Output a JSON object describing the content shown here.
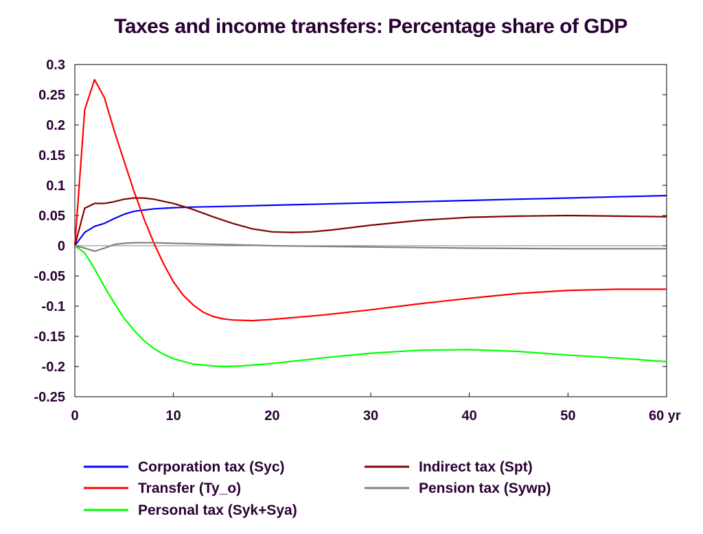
{
  "chart_data": {
    "type": "line",
    "title": "Taxes and income transfers: Percentage share of GDP",
    "xlim": [
      0,
      60
    ],
    "ylim": [
      -0.25,
      0.3
    ],
    "x_ticks": [
      "0",
      "10",
      "20",
      "30",
      "40",
      "50",
      "60 yr"
    ],
    "x_tick_values": [
      0,
      10,
      20,
      30,
      40,
      50,
      60
    ],
    "y_ticks": [
      "0.3",
      "0.25",
      "0.2",
      "0.15",
      "0.1",
      "0.05",
      "0",
      "-0.05",
      "-0.1",
      "-0.15",
      "-0.2",
      "-0.25"
    ],
    "y_tick_values": [
      0.3,
      0.25,
      0.2,
      0.15,
      0.1,
      0.05,
      0,
      -0.05,
      -0.1,
      -0.15,
      -0.2,
      -0.25
    ],
    "grid": false,
    "legend_position": "bottom",
    "series": [
      {
        "name": "Corporation tax (Syc)",
        "color": "#0000ff",
        "x": [
          0,
          1,
          2,
          3,
          4,
          5,
          6,
          8,
          10,
          12,
          15,
          20,
          25,
          30,
          35,
          40,
          45,
          50,
          55,
          60
        ],
        "y": [
          0,
          0.022,
          0.032,
          0.037,
          0.045,
          0.052,
          0.057,
          0.061,
          0.063,
          0.064,
          0.065,
          0.067,
          0.069,
          0.071,
          0.073,
          0.075,
          0.077,
          0.079,
          0.081,
          0.083
        ]
      },
      {
        "name": "Transfer (Ty_o)",
        "color": "#ff0000",
        "x": [
          0,
          1,
          2,
          3,
          4,
          5,
          6,
          7,
          8,
          9,
          10,
          11,
          12,
          13,
          14,
          15,
          16,
          18,
          20,
          25,
          30,
          35,
          40,
          45,
          50,
          55,
          60
        ],
        "y": [
          0,
          0.225,
          0.275,
          0.245,
          0.19,
          0.14,
          0.09,
          0.045,
          0.005,
          -0.03,
          -0.06,
          -0.082,
          -0.098,
          -0.11,
          -0.117,
          -0.121,
          -0.123,
          -0.124,
          -0.122,
          -0.115,
          -0.106,
          -0.096,
          -0.087,
          -0.079,
          -0.074,
          -0.072,
          -0.072
        ]
      },
      {
        "name": "Personal tax (Syk+Sya)",
        "color": "#00ff00",
        "x": [
          0,
          1,
          2,
          3,
          4,
          5,
          6,
          7,
          8,
          9,
          10,
          12,
          14,
          15,
          17,
          20,
          25,
          30,
          35,
          40,
          45,
          50,
          55,
          60
        ],
        "y": [
          0,
          -0.012,
          -0.038,
          -0.068,
          -0.095,
          -0.12,
          -0.14,
          -0.157,
          -0.17,
          -0.18,
          -0.187,
          -0.196,
          -0.199,
          -0.2,
          -0.199,
          -0.195,
          -0.186,
          -0.178,
          -0.173,
          -0.172,
          -0.175,
          -0.181,
          -0.186,
          -0.192
        ]
      },
      {
        "name": "Indirect tax (Spt)",
        "color": "#800000",
        "x": [
          0,
          1,
          2,
          3,
          4,
          5,
          6,
          7,
          8,
          10,
          12,
          14,
          16,
          18,
          20,
          22,
          24,
          26,
          28,
          30,
          35,
          40,
          45,
          50,
          55,
          60
        ],
        "y": [
          0,
          0.062,
          0.07,
          0.07,
          0.073,
          0.077,
          0.079,
          0.079,
          0.077,
          0.07,
          0.06,
          0.048,
          0.037,
          0.028,
          0.023,
          0.022,
          0.023,
          0.026,
          0.03,
          0.034,
          0.042,
          0.047,
          0.049,
          0.05,
          0.049,
          0.048
        ]
      },
      {
        "name": "Pension tax (Sywp)",
        "color": "#808080",
        "x": [
          0,
          1,
          2,
          3,
          4,
          5,
          6,
          8,
          10,
          15,
          20,
          30,
          40,
          50,
          60
        ],
        "y": [
          0,
          -0.004,
          -0.009,
          -0.004,
          0.002,
          0.004,
          0.005,
          0.005,
          0.004,
          0.002,
          0,
          -0.002,
          -0.004,
          -0.005,
          -0.005
        ]
      }
    ]
  }
}
